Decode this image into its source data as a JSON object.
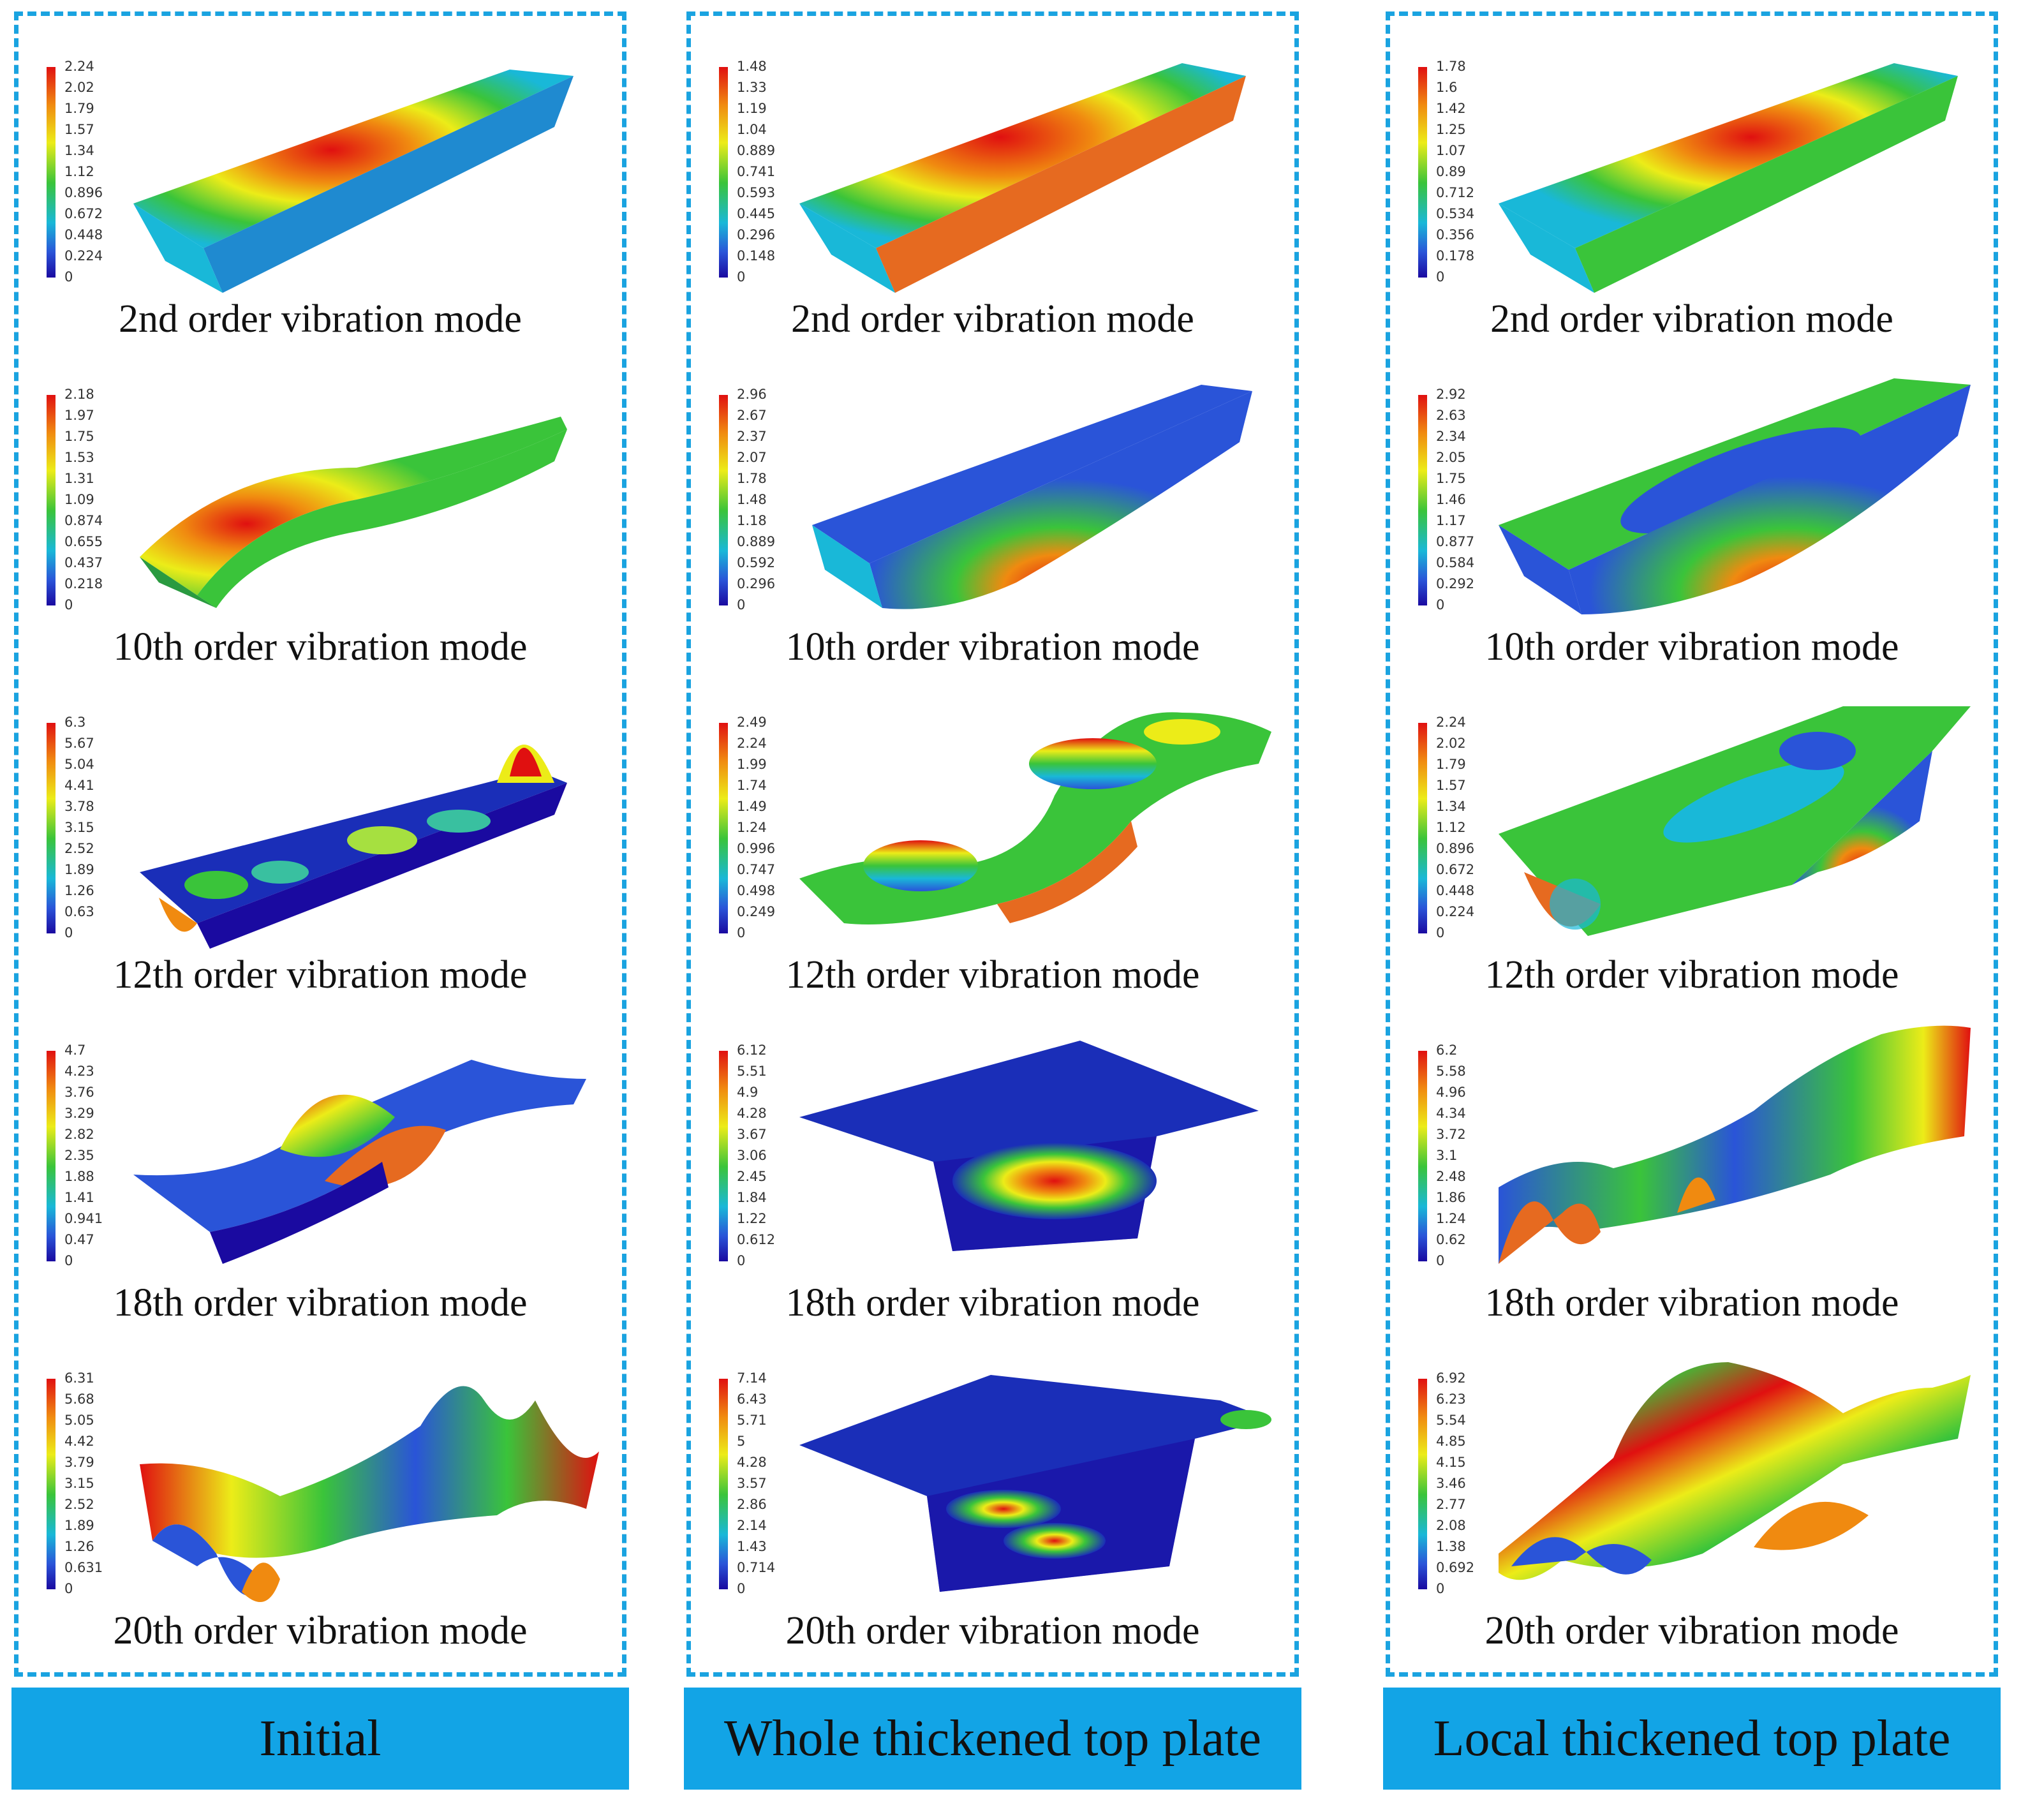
{
  "columns": [
    {
      "label": "Initial",
      "modes": [
        {
          "caption": "2nd order vibration mode",
          "scale": [
            "2.24",
            "2.02",
            "1.79",
            "1.57",
            "1.34",
            "1.12",
            "0.896",
            "0.672",
            "0.448",
            "0.224",
            "0"
          ]
        },
        {
          "caption": "10th order vibration mode",
          "scale": [
            "2.18",
            "1.97",
            "1.75",
            "1.53",
            "1.31",
            "1.09",
            "0.874",
            "0.655",
            "0.437",
            "0.218",
            "0"
          ]
        },
        {
          "caption": "12th order vibration mode",
          "scale": [
            "6.3",
            "5.67",
            "5.04",
            "4.41",
            "3.78",
            "3.15",
            "2.52",
            "1.89",
            "1.26",
            "0.63",
            "0"
          ]
        },
        {
          "caption": "18th order vibration mode",
          "scale": [
            "4.7",
            "4.23",
            "3.76",
            "3.29",
            "2.82",
            "2.35",
            "1.88",
            "1.41",
            "0.941",
            "0.47",
            "0"
          ]
        },
        {
          "caption": "20th order vibration mode",
          "scale": [
            "6.31",
            "5.68",
            "5.05",
            "4.42",
            "3.79",
            "3.15",
            "2.52",
            "1.89",
            "1.26",
            "0.631",
            "0"
          ]
        }
      ]
    },
    {
      "label": "Whole thickened top plate",
      "modes": [
        {
          "caption": "2nd order vibration mode",
          "scale": [
            "1.48",
            "1.33",
            "1.19",
            "1.04",
            "0.889",
            "0.741",
            "0.593",
            "0.445",
            "0.296",
            "0.148",
            "0"
          ]
        },
        {
          "caption": "10th order vibration mode",
          "scale": [
            "2.96",
            "2.67",
            "2.37",
            "2.07",
            "1.78",
            "1.48",
            "1.18",
            "0.889",
            "0.592",
            "0.296",
            "0"
          ]
        },
        {
          "caption": "12th order vibration mode",
          "scale": [
            "2.49",
            "2.24",
            "1.99",
            "1.74",
            "1.49",
            "1.24",
            "0.996",
            "0.747",
            "0.498",
            "0.249",
            "0"
          ]
        },
        {
          "caption": "18th order vibration mode",
          "scale": [
            "6.12",
            "5.51",
            "4.9",
            "4.28",
            "3.67",
            "3.06",
            "2.45",
            "1.84",
            "1.22",
            "0.612",
            "0"
          ]
        },
        {
          "caption": "20th order vibration mode",
          "scale": [
            "7.14",
            "6.43",
            "5.71",
            "5",
            "4.28",
            "3.57",
            "2.86",
            "2.14",
            "1.43",
            "0.714",
            "0"
          ]
        }
      ]
    },
    {
      "label": "Local thickened top plate",
      "modes": [
        {
          "caption": "2nd order vibration mode",
          "scale": [
            "1.78",
            "1.6",
            "1.42",
            "1.25",
            "1.07",
            "0.89",
            "0.712",
            "0.534",
            "0.356",
            "0.178",
            "0"
          ]
        },
        {
          "caption": "10th order vibration mode",
          "scale": [
            "2.92",
            "2.63",
            "2.34",
            "2.05",
            "1.75",
            "1.46",
            "1.17",
            "0.877",
            "0.584",
            "0.292",
            "0"
          ]
        },
        {
          "caption": "12th order vibration mode",
          "scale": [
            "2.24",
            "2.02",
            "1.79",
            "1.57",
            "1.34",
            "1.12",
            "0.896",
            "0.672",
            "0.448",
            "0.224",
            "0"
          ]
        },
        {
          "caption": "18th order vibration mode",
          "scale": [
            "6.2",
            "5.58",
            "4.96",
            "4.34",
            "3.72",
            "3.1",
            "2.48",
            "1.86",
            "1.24",
            "0.62",
            "0"
          ]
        },
        {
          "caption": "20th order vibration mode",
          "scale": [
            "6.92",
            "6.23",
            "5.54",
            "4.85",
            "4.15",
            "3.46",
            "2.77",
            "2.08",
            "1.38",
            "0.692",
            "0"
          ]
        }
      ]
    }
  ],
  "colors": {
    "frame": "#1aa3e0",
    "footer": "#12a4e6",
    "dark_blue": "#1a0aa0",
    "blue": "#2a54d8",
    "cyan": "#19b8d8",
    "green": "#3ac43a",
    "yellow": "#ecec18",
    "orange": "#f08a10",
    "red": "#e01010"
  }
}
